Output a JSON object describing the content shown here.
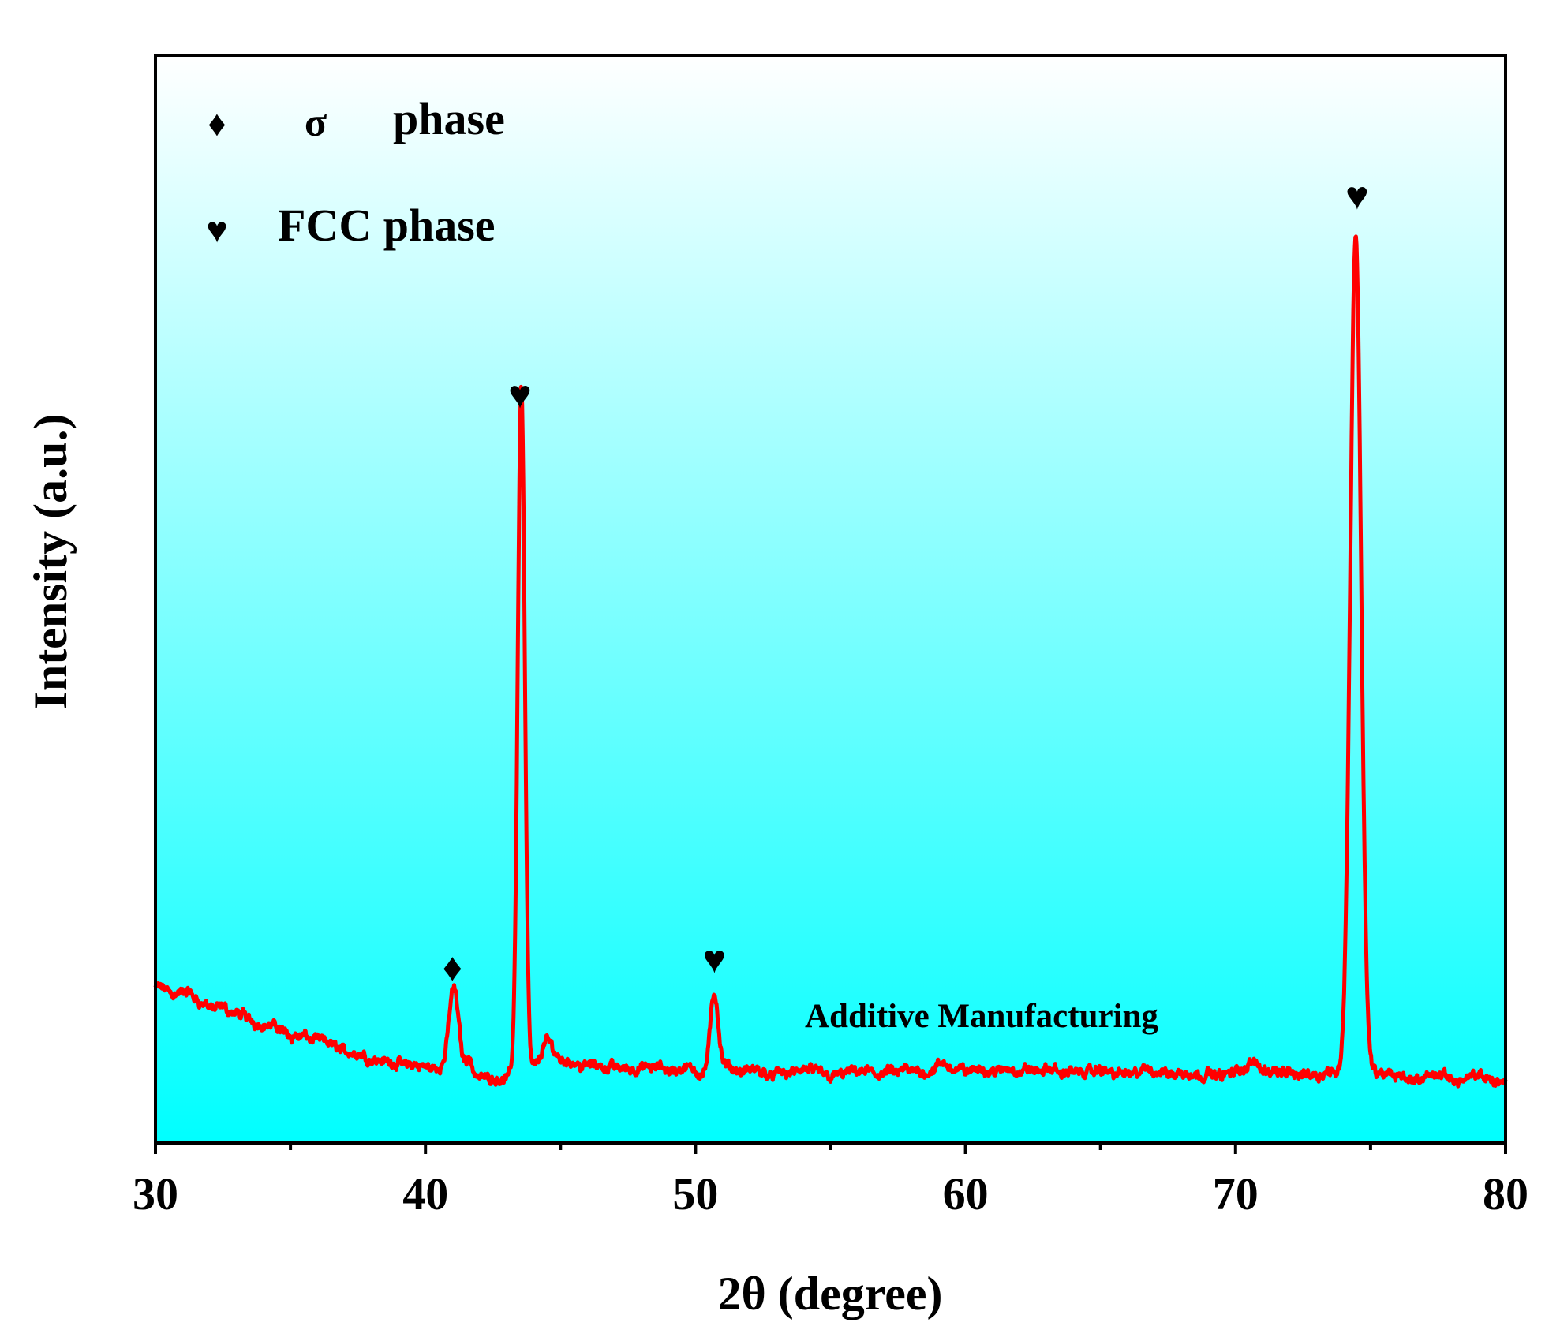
{
  "chart_data": {
    "type": "line",
    "xlabel": "2θ (degree)",
    "ylabel": "Intensity (a.u.)",
    "xlim": [
      30,
      80
    ],
    "ylim": [
      0,
      1000
    ],
    "xticks": [
      30,
      40,
      50,
      60,
      70,
      80
    ],
    "xtick_labels": [
      "30",
      "40",
      "50",
      "60",
      "70",
      "80"
    ],
    "minor_xticks": [
      35,
      45,
      55,
      65,
      75
    ],
    "grid": false,
    "background": "gradient white (top) to cyan (bottom)",
    "series": [
      {
        "name": "Additive Manufacturing",
        "color": "#ff0000",
        "baseline": [
          [
            30,
            143
          ],
          [
            31,
            138
          ],
          [
            32,
            125
          ],
          [
            33,
            118
          ],
          [
            34,
            110
          ],
          [
            35,
            102
          ],
          [
            36,
            94
          ],
          [
            37,
            86
          ],
          [
            38,
            79
          ],
          [
            39,
            73
          ],
          [
            40,
            69
          ],
          [
            41,
            66
          ],
          [
            42,
            62
          ],
          [
            43,
            60
          ],
          [
            45,
            78
          ],
          [
            46,
            72
          ],
          [
            47,
            70
          ],
          [
            48,
            68
          ],
          [
            49,
            67
          ],
          [
            52,
            65
          ],
          [
            55,
            64
          ],
          [
            58,
            64
          ],
          [
            59,
            70
          ],
          [
            60,
            67
          ],
          [
            62,
            66
          ],
          [
            65,
            65
          ],
          [
            68,
            64
          ],
          [
            70,
            64
          ],
          [
            70.7,
            72
          ],
          [
            72,
            64
          ],
          [
            73.5,
            66
          ],
          [
            75.5,
            62
          ],
          [
            77,
            60
          ],
          [
            80,
            58
          ]
        ],
        "peaks": [
          {
            "x": 41.05,
            "height": 78,
            "width": 0.18
          },
          {
            "x": 41.6,
            "height": 15,
            "width": 0.12
          },
          {
            "x": 43.55,
            "height": 633,
            "width": 0.13
          },
          {
            "x": 44.5,
            "height": 20,
            "width": 0.2
          },
          {
            "x": 50.7,
            "height": 70,
            "width": 0.15
          },
          {
            "x": 74.45,
            "height": 770,
            "width": 0.2
          }
        ]
      }
    ],
    "markers": [
      {
        "symbol": "♦",
        "x": 41.0,
        "phase": "σ phase"
      },
      {
        "symbol": "♥",
        "x": 43.5,
        "phase": "FCC phase"
      },
      {
        "symbol": "♥",
        "x": 50.7,
        "phase": "FCC phase"
      },
      {
        "symbol": "♥",
        "x": 74.5,
        "phase": "FCC phase"
      }
    ],
    "legend": {
      "placement": "top-left",
      "entries": [
        {
          "symbol": "♦",
          "greek": "σ",
          "label": "phase"
        },
        {
          "symbol": "♥",
          "label": "FCC phase"
        }
      ]
    },
    "annotation": "Additive Manufacturing"
  }
}
